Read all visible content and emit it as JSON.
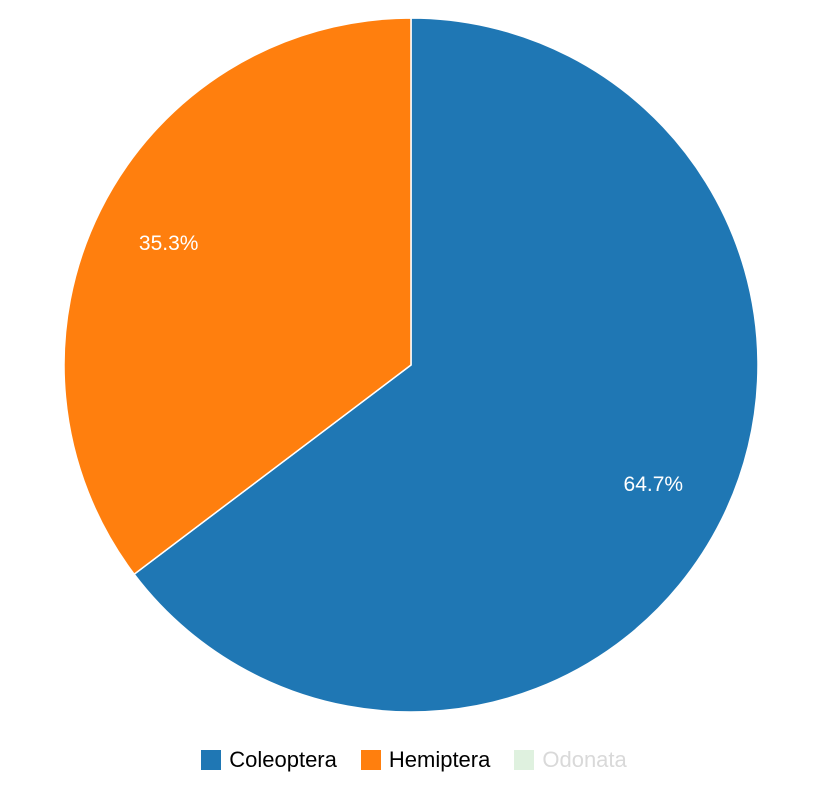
{
  "chart_data": {
    "type": "pie",
    "title": "",
    "slices": [
      {
        "name": "Coleoptera",
        "value": 64.7,
        "label": "64.7%",
        "color": "#1f77b4",
        "visible": true
      },
      {
        "name": "Hemiptera",
        "value": 35.3,
        "label": "35.3%",
        "color": "#ff7f0e",
        "visible": true
      },
      {
        "name": "Odonata",
        "value": 0,
        "label": "",
        "color": "#dff1df",
        "visible": false
      }
    ],
    "legend_position": "bottom"
  },
  "legend": {
    "items": [
      {
        "label": "Coleoptera",
        "color": "#1f77b4",
        "active": true
      },
      {
        "label": "Hemiptera",
        "color": "#ff7f0e",
        "active": true
      },
      {
        "label": "Odonata",
        "color": "#dff1df",
        "active": false
      }
    ]
  }
}
